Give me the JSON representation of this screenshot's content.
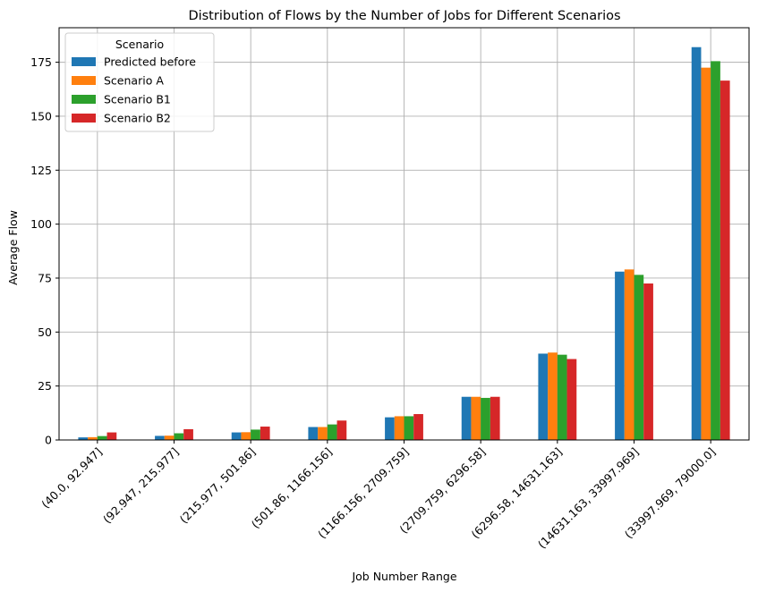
{
  "chart_data": {
    "type": "bar",
    "title": "Distribution of Flows by the Number of Jobs for Different Scenarios",
    "xlabel": "Job Number Range",
    "ylabel": "Average Flow",
    "ylim": [
      0,
      191
    ],
    "yticks": [
      0,
      25,
      50,
      75,
      100,
      125,
      150,
      175
    ],
    "grid": true,
    "legend_title": "Scenario",
    "legend_position": "top-left",
    "categories": [
      "(40.0, 92.947]",
      "(92.947, 215.977]",
      "(215.977, 501.86]",
      "(501.86, 1166.156]",
      "(1166.156, 2709.759]",
      "(2709.759, 6296.58]",
      "(6296.58, 14631.163]",
      "(14631.163, 33997.969]",
      "(33997.969, 79000.0]"
    ],
    "series": [
      {
        "name": "Predicted before",
        "color": "#1f77b4",
        "values": [
          1.2,
          1.9,
          3.5,
          6.0,
          10.5,
          20.0,
          40.0,
          78.0,
          182.0
        ]
      },
      {
        "name": "Scenario A",
        "color": "#ff7f0e",
        "values": [
          1.3,
          2.0,
          3.6,
          6.0,
          11.0,
          20.0,
          40.5,
          79.0,
          172.5
        ]
      },
      {
        "name": "Scenario B1",
        "color": "#2ca02c",
        "values": [
          1.8,
          3.1,
          4.8,
          7.2,
          11.0,
          19.5,
          39.5,
          76.5,
          175.5
        ]
      },
      {
        "name": "Scenario B2",
        "color": "#d62728",
        "values": [
          3.5,
          5.0,
          6.2,
          9.0,
          12.0,
          20.0,
          37.5,
          72.5,
          166.5
        ]
      }
    ]
  }
}
